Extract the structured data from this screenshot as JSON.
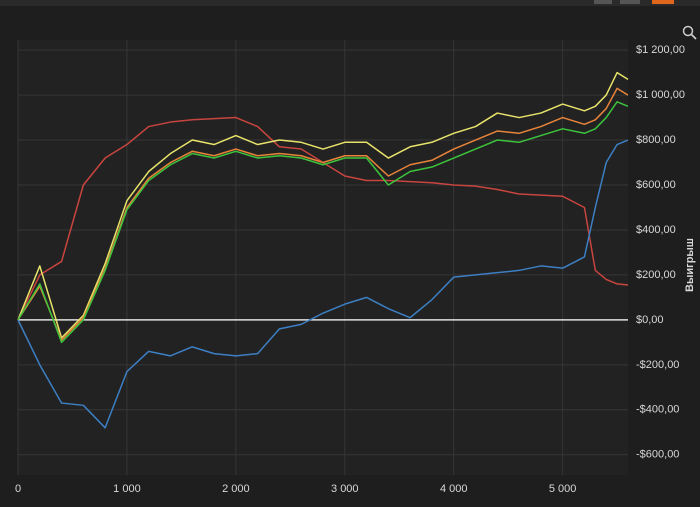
{
  "chart_data": {
    "type": "line",
    "y_label": "Выигрыш",
    "x": [
      0,
      200,
      400,
      600,
      800,
      1000,
      1200,
      1400,
      1600,
      1800,
      2000,
      2200,
      2400,
      2600,
      2800,
      3000,
      3200,
      3400,
      3600,
      3800,
      4000,
      4200,
      4400,
      4600,
      4800,
      5000,
      5200,
      5300,
      5400,
      5500,
      5600
    ],
    "series": [
      {
        "color": "#c8453f",
        "values": [
          0,
          200,
          260,
          600,
          720,
          780,
          860,
          880,
          890,
          895,
          900,
          860,
          770,
          760,
          700,
          640,
          620,
          620,
          615,
          610,
          600,
          595,
          580,
          560,
          555,
          550,
          500,
          220,
          180,
          160,
          155
        ]
      },
      {
        "color": "#3d7fc4",
        "values": [
          0,
          -200,
          -370,
          -380,
          -480,
          -230,
          -140,
          -160,
          -120,
          -150,
          -160,
          -150,
          -40,
          -20,
          30,
          70,
          100,
          50,
          10,
          90,
          190,
          200,
          210,
          220,
          240,
          230,
          280,
          500,
          700,
          780,
          800
        ]
      },
      {
        "color": "#e8e36a",
        "values": [
          0,
          240,
          -80,
          20,
          250,
          530,
          660,
          740,
          800,
          780,
          820,
          780,
          800,
          790,
          760,
          790,
          790,
          720,
          770,
          790,
          830,
          860,
          920,
          900,
          920,
          960,
          930,
          950,
          1000,
          1100,
          1070
        ]
      },
      {
        "color": "#e8843a",
        "values": [
          0,
          150,
          -90,
          10,
          230,
          500,
          630,
          700,
          750,
          730,
          760,
          730,
          740,
          730,
          700,
          730,
          730,
          640,
          690,
          710,
          760,
          800,
          840,
          830,
          860,
          900,
          870,
          890,
          940,
          1030,
          1000
        ]
      },
      {
        "color": "#3cc43c",
        "values": [
          0,
          160,
          -100,
          0,
          220,
          490,
          620,
          690,
          740,
          720,
          750,
          720,
          730,
          720,
          690,
          720,
          720,
          600,
          660,
          680,
          720,
          760,
          800,
          790,
          820,
          850,
          830,
          850,
          900,
          970,
          950
        ]
      }
    ],
    "xlim": [
      0,
      5600
    ],
    "ylim": [
      -690,
      1245
    ],
    "xticks": [
      0,
      {
        "value": 1000,
        "label": "1 000"
      },
      {
        "value": 2000,
        "label": "2 000"
      },
      {
        "value": 3000,
        "label": "3 000"
      },
      {
        "value": 4000,
        "label": "4 000"
      },
      {
        "value": 5000,
        "label": "5 000"
      }
    ],
    "yticks": [
      {
        "value": 1200,
        "label": "$1 200,00"
      },
      {
        "value": 1000,
        "label": "$1 000,00"
      },
      {
        "value": 800,
        "label": "$800,00"
      },
      {
        "value": 600,
        "label": "$600,00"
      },
      {
        "value": 400,
        "label": "$400,00"
      },
      {
        "value": 200,
        "label": "$200,00"
      },
      {
        "value": 0,
        "label": "$0,00"
      },
      {
        "value": -200,
        "label": "-$200,00"
      },
      {
        "value": -400,
        "label": "-$400,00"
      },
      {
        "value": -600,
        "label": "-$600,00"
      }
    ],
    "grid": true
  }
}
